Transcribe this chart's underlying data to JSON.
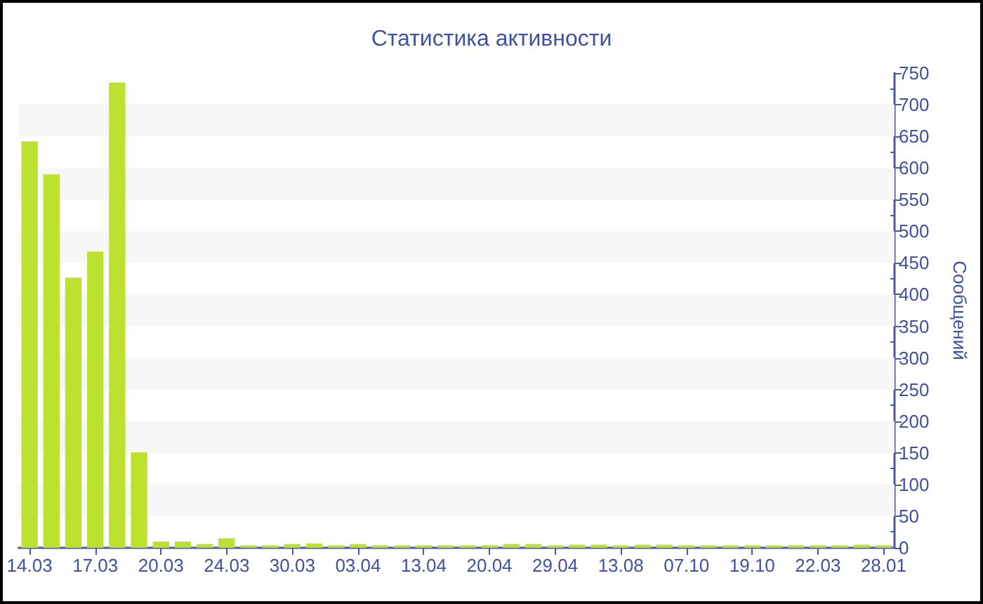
{
  "chart_data": {
    "type": "bar",
    "title": "Статистика активности",
    "ylabel": "Сообщений",
    "categories": [
      "14.03",
      null,
      null,
      "17.03",
      null,
      null,
      "20.03",
      null,
      null,
      "24.03",
      null,
      null,
      "30.03",
      null,
      null,
      "03.04",
      null,
      null,
      "13.04",
      null,
      null,
      "20.04",
      null,
      null,
      "29.04",
      null,
      null,
      "13.08",
      null,
      null,
      "07.10",
      null,
      null,
      "19.10",
      null,
      null,
      "22.03",
      null,
      null,
      "28.01"
    ],
    "values": [
      642,
      590,
      427,
      468,
      735,
      151,
      10,
      10,
      6,
      15,
      4,
      4,
      6,
      7,
      4,
      6,
      4,
      4,
      4,
      4,
      4,
      4,
      6,
      6,
      4,
      5,
      5,
      4,
      5,
      5,
      4,
      4,
      4,
      4,
      4,
      4,
      4,
      4,
      5,
      4
    ],
    "color": "#bde12f",
    "ylim": [
      0,
      750
    ],
    "yticks": [
      0,
      {
        "value": 25,
        "label": null
      },
      50,
      {
        "value": 75,
        "label": null
      },
      100,
      {
        "value": 125,
        "label": null
      },
      150,
      {
        "value": 175,
        "label": null
      },
      200,
      {
        "value": 225,
        "label": null
      },
      250,
      {
        "value": 275,
        "label": null
      },
      300,
      {
        "value": 325,
        "label": null
      },
      350,
      {
        "value": 375,
        "label": null
      },
      400,
      {
        "value": 425,
        "label": null
      },
      450,
      {
        "value": 475,
        "label": null
      },
      500,
      {
        "value": 525,
        "label": null
      },
      550,
      {
        "value": 575,
        "label": null
      },
      600,
      {
        "value": 625,
        "label": null
      },
      650,
      {
        "value": 675,
        "label": null
      },
      700,
      {
        "value": 725,
        "label": null
      },
      750
    ],
    "bands": [
      {
        "axis": "y",
        "from": 50,
        "to": 100,
        "color": "#f7f7f7"
      },
      {
        "axis": "y",
        "from": 150,
        "to": 200,
        "color": "#f7f7f7"
      },
      {
        "axis": "y",
        "from": 250,
        "to": 300,
        "color": "#f7f7f7"
      },
      {
        "axis": "y",
        "from": 350,
        "to": 400,
        "color": "#f7f7f7"
      },
      {
        "axis": "y",
        "from": 450,
        "to": 500,
        "color": "#f7f7f7"
      },
      {
        "axis": "y",
        "from": 550,
        "to": 600,
        "color": "#f7f7f7"
      },
      {
        "axis": "y",
        "from": 650,
        "to": 700,
        "color": "#f7f7f7"
      }
    ]
  }
}
